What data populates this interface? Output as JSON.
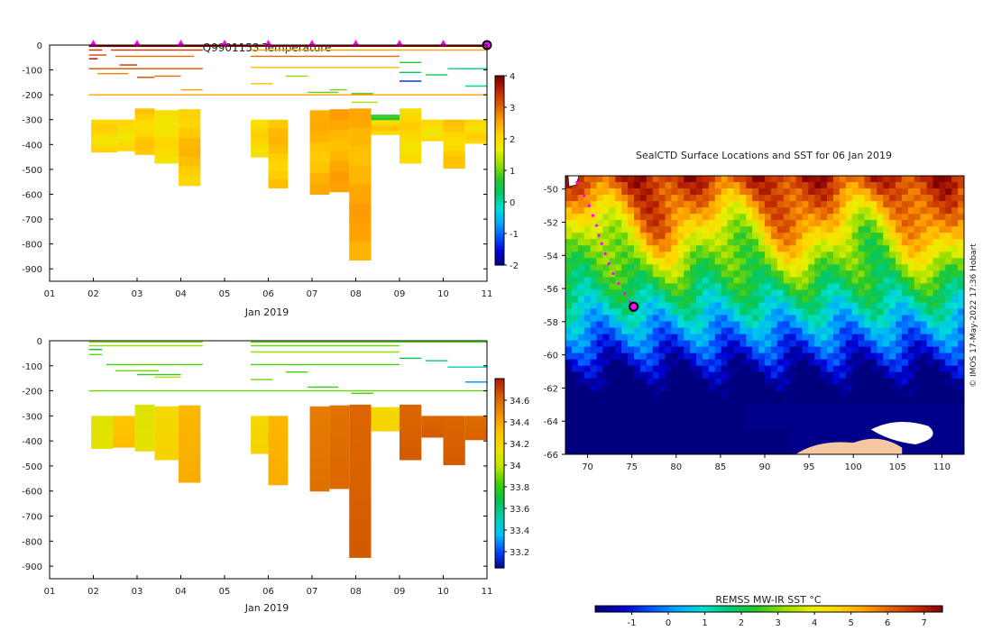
{
  "colors": {
    "jet": [
      "#00007f",
      "#0000d0",
      "#0050ff",
      "#00a8ff",
      "#00e0d0",
      "#00c86e",
      "#28c828",
      "#9ade00",
      "#e6f000",
      "#ffd700",
      "#ffa000",
      "#e06000",
      "#c02800",
      "#7f0000"
    ],
    "salt": [
      "#00007f",
      "#0040ff",
      "#00c0ff",
      "#00d0b0",
      "#00c050",
      "#40d000",
      "#c0e800",
      "#f0e000",
      "#ffc000",
      "#f09000",
      "#d86000",
      "#b02000"
    ],
    "marker": "#ff00ff",
    "axis": "#000000",
    "land": "#f5c8a0",
    "ice": "#ffffff",
    "shelf": "#00008b"
  },
  "chart_data": [
    {
      "id": "temperature",
      "type": "heatmap",
      "title": "Q9901153  Temperature",
      "xlabel": "Jan 2019",
      "ylabel": "",
      "x_ticks": [
        "01",
        "02",
        "03",
        "04",
        "05",
        "06",
        "07",
        "08",
        "09",
        "10",
        "11"
      ],
      "xlim": [
        1,
        11
      ],
      "ylim": [
        -950,
        0
      ],
      "y_ticks": [
        "0",
        "-100",
        "-200",
        "-300",
        "-400",
        "-500",
        "-600",
        "-700",
        "-800",
        "-900"
      ],
      "y_tick_values": [
        0,
        -100,
        -200,
        -300,
        -400,
        -500,
        -600,
        -700,
        -800,
        -900
      ],
      "colorbar": {
        "min": -2,
        "max": 4,
        "ticks": [
          "4",
          "3",
          "2",
          "1",
          "0",
          "-1",
          "-2"
        ],
        "tick_values": [
          4,
          3,
          2,
          1,
          0,
          -1,
          -2
        ]
      },
      "surface_markers_day": [
        2.0,
        3.0,
        4.0,
        5.0,
        6.0,
        7.0,
        8.0,
        9.0,
        10.0
      ],
      "current_marker_day": 11.0,
      "profiles": [
        {
          "t0": 1.95,
          "t1": 2.55,
          "z0": -300,
          "z1": -430,
          "v": 2.1
        },
        {
          "t0": 2.55,
          "t1": 2.95,
          "z0": -300,
          "z1": -425,
          "v": 2.0
        },
        {
          "t0": 2.95,
          "t1": 3.4,
          "z0": -255,
          "z1": -440,
          "v": 2.2
        },
        {
          "t0": 3.4,
          "t1": 3.95,
          "z0": -262,
          "z1": -475,
          "v": 2.0
        },
        {
          "t0": 3.95,
          "t1": 4.45,
          "z0": -258,
          "z1": -565,
          "v": 2.3
        },
        {
          "t0": 5.6,
          "t1": 6.0,
          "z0": -300,
          "z1": -450,
          "v": 2.1
        },
        {
          "t0": 6.0,
          "t1": 6.45,
          "z0": -300,
          "z1": -575,
          "v": 2.3
        },
        {
          "t0": 6.95,
          "t1": 7.4,
          "z0": -262,
          "z1": -600,
          "v": 2.4
        },
        {
          "t0": 7.4,
          "t1": 7.85,
          "z0": -258,
          "z1": -590,
          "v": 2.5
        },
        {
          "t0": 7.85,
          "t1": 8.35,
          "z0": -255,
          "z1": -865,
          "v": 2.5
        },
        {
          "t0": 8.35,
          "t1": 9.0,
          "z0": -300,
          "z1": -360,
          "v": 2.2
        },
        {
          "t0": 8.35,
          "t1": 9.0,
          "z0": -280,
          "z1": -300,
          "v": 0.8
        },
        {
          "t0": 9.0,
          "t1": 9.5,
          "z0": -255,
          "z1": -475,
          "v": 2.1
        },
        {
          "t0": 9.5,
          "t1": 10.0,
          "z0": -300,
          "z1": -385,
          "v": 2.0
        },
        {
          "t0": 10.0,
          "t1": 10.5,
          "z0": -300,
          "z1": -495,
          "v": 2.2
        },
        {
          "t0": 10.5,
          "t1": 11.0,
          "z0": -300,
          "z1": -395,
          "v": 2.1
        }
      ],
      "lines": [
        {
          "t0": 1.9,
          "t1": 4.5,
          "z": -5,
          "v": 3.6
        },
        {
          "t0": 1.9,
          "t1": 2.2,
          "z": -20,
          "v": 3.5
        },
        {
          "t0": 1.9,
          "t1": 2.3,
          "z": -40,
          "v": 3.3
        },
        {
          "t0": 1.9,
          "t1": 2.1,
          "z": -55,
          "v": 3.8
        },
        {
          "t0": 2.4,
          "t1": 4.5,
          "z": -20,
          "v": 3.4
        },
        {
          "t0": 2.5,
          "t1": 4.3,
          "z": -45,
          "v": 3.0
        },
        {
          "t0": 1.9,
          "t1": 4.5,
          "z": -95,
          "v": 3.2
        },
        {
          "t0": 2.6,
          "t1": 3.0,
          "z": -80,
          "v": 3.5
        },
        {
          "t0": 3.0,
          "t1": 3.4,
          "z": -130,
          "v": 3.3
        },
        {
          "t0": 3.4,
          "t1": 4.0,
          "z": -125,
          "v": 3.0
        },
        {
          "t0": 2.1,
          "t1": 2.8,
          "z": -115,
          "v": 2.8
        },
        {
          "t0": 4.0,
          "t1": 4.5,
          "z": -180,
          "v": 2.6
        },
        {
          "t0": 5.6,
          "t1": 11.0,
          "z": -5,
          "v": 2.2
        },
        {
          "t0": 5.6,
          "t1": 11.0,
          "z": -20,
          "v": 2.6
        },
        {
          "t0": 5.6,
          "t1": 9.0,
          "z": -45,
          "v": 3.0
        },
        {
          "t0": 5.6,
          "t1": 9.0,
          "z": -90,
          "v": 2.4
        },
        {
          "t0": 5.6,
          "t1": 6.1,
          "z": -155,
          "v": 2.3
        },
        {
          "t0": 6.4,
          "t1": 6.9,
          "z": -125,
          "v": 1.2
        },
        {
          "t0": 6.9,
          "t1": 7.6,
          "z": -190,
          "v": 1.0
        },
        {
          "t0": 7.4,
          "t1": 7.8,
          "z": -180,
          "v": 1.1
        },
        {
          "t0": 7.9,
          "t1": 8.4,
          "z": -195,
          "v": 0.9
        },
        {
          "t0": 7.9,
          "t1": 8.5,
          "z": -230,
          "v": 1.3
        },
        {
          "t0": 9.0,
          "t1": 9.5,
          "z": -70,
          "v": 0.6
        },
        {
          "t0": 9.0,
          "t1": 9.5,
          "z": -110,
          "v": 0.3
        },
        {
          "t0": 9.0,
          "t1": 9.5,
          "z": -145,
          "v": -1.2
        },
        {
          "t0": 9.6,
          "t1": 10.1,
          "z": -120,
          "v": 0.5
        },
        {
          "t0": 10.1,
          "t1": 11.0,
          "z": -95,
          "v": 0.2
        },
        {
          "t0": 10.5,
          "t1": 11.0,
          "z": -165,
          "v": 0.1
        },
        {
          "t0": 1.9,
          "t1": 11.0,
          "z": -200,
          "v": 2.6
        }
      ]
    },
    {
      "id": "salinity",
      "type": "heatmap",
      "title": "",
      "xlabel": "Jan 2019",
      "ylabel": "",
      "x_ticks": [
        "01",
        "02",
        "03",
        "04",
        "05",
        "06",
        "07",
        "08",
        "09",
        "10",
        "11"
      ],
      "xlim": [
        1,
        11
      ],
      "ylim": [
        -950,
        0
      ],
      "y_ticks": [
        "0",
        "-100",
        "-200",
        "-300",
        "-400",
        "-500",
        "-600",
        "-700",
        "-800",
        "-900"
      ],
      "y_tick_values": [
        0,
        -100,
        -200,
        -300,
        -400,
        -500,
        -600,
        -700,
        -800,
        -900
      ],
      "colorbar": {
        "min": 33.05,
        "max": 34.8,
        "ticks": [
          "34.6",
          "34.4",
          "34.2",
          "34",
          "33.8",
          "33.6",
          "33.4",
          "33.2"
        ],
        "tick_values": [
          34.6,
          34.4,
          34.2,
          34.0,
          33.8,
          33.6,
          33.4,
          33.2
        ]
      },
      "profiles": [
        {
          "t0": 1.95,
          "t1": 2.45,
          "z0": -300,
          "z1": -430,
          "v": 34.1
        },
        {
          "t0": 2.45,
          "t1": 2.95,
          "z0": -300,
          "z1": -425,
          "v": 34.3
        },
        {
          "t0": 2.95,
          "t1": 3.4,
          "z0": -255,
          "z1": -440,
          "v": 34.1
        },
        {
          "t0": 3.4,
          "t1": 3.95,
          "z0": -262,
          "z1": -475,
          "v": 34.2
        },
        {
          "t0": 3.95,
          "t1": 4.45,
          "z0": -258,
          "z1": -565,
          "v": 34.35
        },
        {
          "t0": 5.6,
          "t1": 6.0,
          "z0": -300,
          "z1": -450,
          "v": 34.2
        },
        {
          "t0": 6.0,
          "t1": 6.45,
          "z0": -300,
          "z1": -575,
          "v": 34.35
        },
        {
          "t0": 6.95,
          "t1": 7.4,
          "z0": -262,
          "z1": -600,
          "v": 34.55
        },
        {
          "t0": 7.4,
          "t1": 7.85,
          "z0": -258,
          "z1": -590,
          "v": 34.58
        },
        {
          "t0": 7.85,
          "t1": 8.35,
          "z0": -255,
          "z1": -865,
          "v": 34.62
        },
        {
          "t0": 8.35,
          "t1": 9.0,
          "z0": -265,
          "z1": -360,
          "v": 34.2
        },
        {
          "t0": 9.0,
          "t1": 9.5,
          "z0": -255,
          "z1": -475,
          "v": 34.62
        },
        {
          "t0": 9.5,
          "t1": 10.0,
          "z0": -300,
          "z1": -385,
          "v": 34.62
        },
        {
          "t0": 10.0,
          "t1": 10.5,
          "z0": -300,
          "z1": -495,
          "v": 34.62
        },
        {
          "t0": 10.5,
          "t1": 11.0,
          "z0": -300,
          "z1": -395,
          "v": 34.6
        }
      ],
      "lines": [
        {
          "t0": 1.9,
          "t1": 4.5,
          "z": -5,
          "v": 33.9
        },
        {
          "t0": 1.9,
          "t1": 4.5,
          "z": -20,
          "v": 33.95
        },
        {
          "t0": 1.9,
          "t1": 2.2,
          "z": -35,
          "v": 33.7
        },
        {
          "t0": 1.9,
          "t1": 2.2,
          "z": -55,
          "v": 33.9
        },
        {
          "t0": 2.3,
          "t1": 4.5,
          "z": -95,
          "v": 33.85
        },
        {
          "t0": 2.5,
          "t1": 3.5,
          "z": -120,
          "v": 33.9
        },
        {
          "t0": 3.0,
          "t1": 4.0,
          "z": -135,
          "v": 33.8
        },
        {
          "t0": 3.4,
          "t1": 4.0,
          "z": -145,
          "v": 34.0
        },
        {
          "t0": 1.9,
          "t1": 11.0,
          "z": -200,
          "v": 33.9
        },
        {
          "t0": 5.6,
          "t1": 11.0,
          "z": -5,
          "v": 33.85
        },
        {
          "t0": 5.6,
          "t1": 9.0,
          "z": -20,
          "v": 33.9
        },
        {
          "t0": 5.6,
          "t1": 9.0,
          "z": -45,
          "v": 33.95
        },
        {
          "t0": 5.6,
          "t1": 9.0,
          "z": -95,
          "v": 33.85
        },
        {
          "t0": 5.6,
          "t1": 6.1,
          "z": -155,
          "v": 33.9
        },
        {
          "t0": 6.4,
          "t1": 6.9,
          "z": -125,
          "v": 33.85
        },
        {
          "t0": 6.9,
          "t1": 7.6,
          "z": -185,
          "v": 33.8
        },
        {
          "t0": 7.9,
          "t1": 8.4,
          "z": -210,
          "v": 33.85
        },
        {
          "t0": 9.0,
          "t1": 9.5,
          "z": -70,
          "v": 33.7
        },
        {
          "t0": 9.6,
          "t1": 10.1,
          "z": -80,
          "v": 33.6
        },
        {
          "t0": 10.1,
          "t1": 11.0,
          "z": -105,
          "v": 33.5
        },
        {
          "t0": 10.5,
          "t1": 11.0,
          "z": -165,
          "v": 33.3
        }
      ]
    },
    {
      "id": "sst_map",
      "type": "heatmap",
      "title": "SealCTD Surface Locations and SST for 06 Jan 2019",
      "x_ticks": [
        "70",
        "75",
        "80",
        "85",
        "90",
        "95",
        "100",
        "105",
        "110"
      ],
      "x_tick_values": [
        70,
        75,
        80,
        85,
        90,
        95,
        100,
        105,
        110
      ],
      "y_ticks": [
        "-50",
        "-52",
        "-54",
        "-56",
        "-58",
        "-60",
        "-62",
        "-64",
        "-66"
      ],
      "y_tick_values": [
        -50,
        -52,
        -54,
        -56,
        -58,
        -60,
        -62,
        -64,
        -66
      ],
      "xlim": [
        67.5,
        112.5
      ],
      "ylim": [
        -66,
        -49.2
      ],
      "colorbar_label": "REMSS MW-IR SST °C",
      "colorbar": {
        "min": -2,
        "max": 7.5,
        "ticks": [
          "-1",
          "0",
          "1",
          "2",
          "3",
          "4",
          "5",
          "6",
          "7"
        ],
        "tick_values": [
          -1,
          0,
          1,
          2,
          3,
          4,
          5,
          6,
          7
        ]
      },
      "track": [
        {
          "lon": 68.8,
          "lat": -49.6
        },
        {
          "lon": 69.6,
          "lat": -50.4
        },
        {
          "lon": 70.2,
          "lat": -51.0
        },
        {
          "lon": 70.6,
          "lat": -51.6
        },
        {
          "lon": 71.0,
          "lat": -52.2
        },
        {
          "lon": 71.3,
          "lat": -52.8
        },
        {
          "lon": 71.6,
          "lat": -53.3
        },
        {
          "lon": 72.0,
          "lat": -53.9
        },
        {
          "lon": 72.4,
          "lat": -54.5
        },
        {
          "lon": 72.9,
          "lat": -55.1
        },
        {
          "lon": 73.5,
          "lat": -55.7
        },
        {
          "lon": 74.2,
          "lat": -56.3
        },
        {
          "lon": 74.8,
          "lat": -56.8
        }
      ],
      "current_position": {
        "lon": 75.2,
        "lat": -57.1
      },
      "credit": "© IMOS 17-May-2022 17:36 Hobart"
    }
  ]
}
